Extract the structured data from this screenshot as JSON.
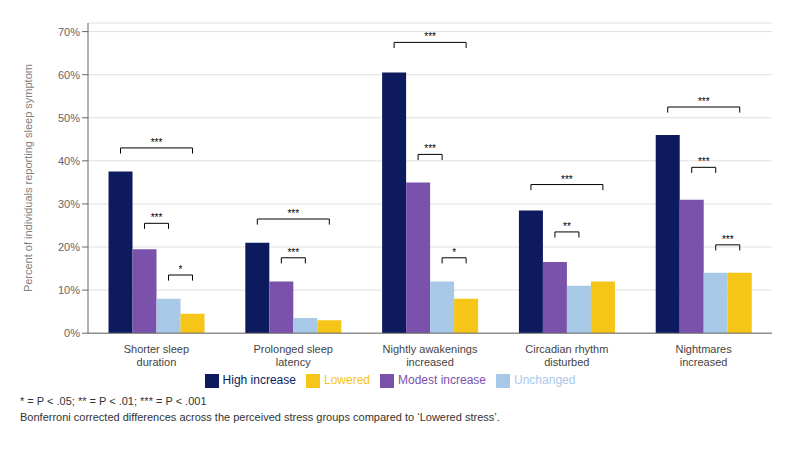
{
  "chart_data": {
    "type": "bar",
    "ylabel": "Percent of individuals reporting sleep symptom",
    "categories": [
      "Shorter sleep\nduration",
      "Prolonged sleep\nlatency",
      "Nightly awakenings\nincreased",
      "Circadian rhythm\ndisturbed",
      "Nightmares\nincreased"
    ],
    "series": [
      {
        "name": "High increase",
        "color": "#0d1b5e",
        "values": [
          0.375,
          0.21,
          0.605,
          0.285,
          0.46
        ]
      },
      {
        "name": "Modest increase",
        "color": "#7b52ab",
        "values": [
          0.195,
          0.12,
          0.35,
          0.165,
          0.31
        ]
      },
      {
        "name": "Unchanged",
        "color": "#a8c8e8",
        "values": [
          0.08,
          0.035,
          0.12,
          0.11,
          0.14
        ]
      },
      {
        "name": "Lowered",
        "color": "#f5c518",
        "values": [
          0.045,
          0.03,
          0.08,
          0.12,
          0.14
        ]
      }
    ],
    "ylim": [
      0,
      0.72
    ],
    "yticks": [
      {
        "value": 0,
        "label": "0%"
      },
      {
        "value": 0.1,
        "label": "10%"
      },
      {
        "value": 0.2,
        "label": "20%"
      },
      {
        "value": 0.3,
        "label": "30%"
      },
      {
        "value": 0.4,
        "label": "40%"
      },
      {
        "value": 0.5,
        "label": "50%"
      },
      {
        "value": 0.6,
        "label": "60%"
      },
      {
        "value": 0.7,
        "label": "70%"
      }
    ],
    "grid": true,
    "legend": "bottom",
    "brackets": [
      {
        "category": "Shorter sleep\nduration",
        "between": [
          "High increase",
          "Lowered"
        ],
        "y": 0.43,
        "label": "***"
      },
      {
        "category": "Shorter sleep\nduration",
        "between": [
          "Modest increase",
          "Unchanged"
        ],
        "y": 0.255,
        "label": "***"
      },
      {
        "category": "Shorter sleep\nduration",
        "between": [
          "Unchanged",
          "Lowered"
        ],
        "y": 0.135,
        "label": "*"
      },
      {
        "category": "Prolonged sleep\nlatency",
        "between": [
          "High increase",
          "Lowered"
        ],
        "y": 0.265,
        "label": "***"
      },
      {
        "category": "Prolonged sleep\nlatency",
        "between": [
          "Modest increase",
          "Unchanged"
        ],
        "y": 0.175,
        "label": "***"
      },
      {
        "category": "Nightly awakenings\nincreased",
        "between": [
          "High increase",
          "Lowered"
        ],
        "y": 0.675,
        "label": "***"
      },
      {
        "category": "Nightly awakenings\nincreased",
        "between": [
          "Modest increase",
          "Unchanged"
        ],
        "y": 0.415,
        "label": "***"
      },
      {
        "category": "Nightly awakenings\nincreased",
        "between": [
          "Unchanged",
          "Lowered"
        ],
        "y": 0.175,
        "label": "*"
      },
      {
        "category": "Circadian rhythm\ndisturbed",
        "between": [
          "High increase",
          "Lowered"
        ],
        "y": 0.345,
        "label": "***"
      },
      {
        "category": "Circadian rhythm\ndisturbed",
        "between": [
          "Modest increase",
          "Unchanged"
        ],
        "y": 0.235,
        "label": "**"
      },
      {
        "category": "Nightmares\nincreased",
        "between": [
          "High increase",
          "Lowered"
        ],
        "y": 0.525,
        "label": "***"
      },
      {
        "category": "Nightmares\nincreased",
        "between": [
          "Modest increase",
          "Unchanged"
        ],
        "y": 0.385,
        "label": "***"
      },
      {
        "category": "Nightmares\nincreased",
        "between": [
          "Unchanged",
          "Lowered"
        ],
        "y": 0.205,
        "label": "***"
      }
    ],
    "footnotes": [
      "* = P < .05; ** = P < .01; *** = P < .001",
      "Bonferroni corrected differences across the perceived stress groups compared to ‘Lowered stress’."
    ]
  }
}
